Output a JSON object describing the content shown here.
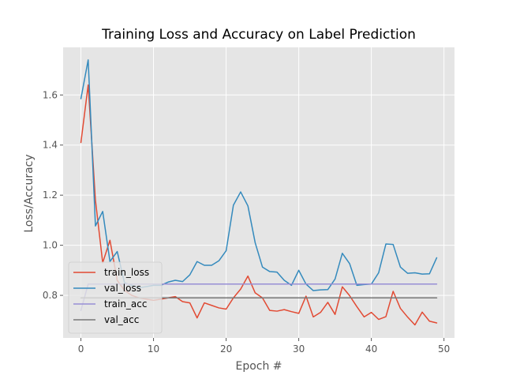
{
  "chart_data": {
    "type": "line",
    "title": "Training Loss and Accuracy on Label Prediction",
    "xlabel": "Epoch #",
    "ylabel": "Loss/Accuracy",
    "xlim": [
      -2.45,
      51.45
    ],
    "ylim": [
      0.63,
      1.79
    ],
    "xticks": [
      0,
      10,
      20,
      30,
      40,
      50
    ],
    "yticks": [
      0.8,
      1.0,
      1.2,
      1.4,
      1.6
    ],
    "ytick_labels": [
      "0.8",
      "1.0",
      "1.2",
      "1.4",
      "1.6"
    ],
    "grid": true,
    "legend_position": "lower-left",
    "background": "#e5e5e5",
    "x": [
      0,
      1,
      2,
      3,
      4,
      5,
      6,
      7,
      8,
      9,
      10,
      11,
      12,
      13,
      14,
      15,
      16,
      17,
      18,
      19,
      20,
      21,
      22,
      23,
      24,
      25,
      26,
      27,
      28,
      29,
      30,
      31,
      32,
      33,
      34,
      35,
      36,
      37,
      38,
      39,
      40,
      41,
      42,
      43,
      44,
      45,
      46,
      47,
      48,
      49
    ],
    "series": [
      {
        "name": "train_loss",
        "color": "#e24a33",
        "values": [
          1.41,
          1.64,
          1.18,
          0.93,
          1.02,
          0.86,
          0.82,
          0.8,
          0.79,
          0.785,
          0.78,
          0.785,
          0.79,
          0.795,
          0.775,
          0.77,
          0.71,
          0.77,
          0.76,
          0.75,
          0.745,
          0.79,
          0.825,
          0.877,
          0.81,
          0.79,
          0.74,
          0.737,
          0.743,
          0.735,
          0.728,
          0.797,
          0.714,
          0.732,
          0.772,
          0.724,
          0.834,
          0.799,
          0.755,
          0.714,
          0.732,
          0.704,
          0.715,
          0.816,
          0.748,
          0.713,
          0.682,
          0.733,
          0.697,
          0.69
        ]
      },
      {
        "name": "val_loss",
        "color": "#348abd",
        "values": [
          1.585,
          1.74,
          1.077,
          1.135,
          0.935,
          0.975,
          0.85,
          0.84,
          0.83,
          0.835,
          0.84,
          0.84,
          0.853,
          0.86,
          0.855,
          0.882,
          0.935,
          0.92,
          0.92,
          0.938,
          0.978,
          1.16,
          1.213,
          1.157,
          1.01,
          0.913,
          0.895,
          0.893,
          0.86,
          0.84,
          0.9,
          0.845,
          0.819,
          0.822,
          0.823,
          0.865,
          0.968,
          0.927,
          0.84,
          0.843,
          0.845,
          0.89,
          1.005,
          1.003,
          0.913,
          0.888,
          0.89,
          0.885,
          0.886,
          0.95
        ]
      },
      {
        "name": "train_acc",
        "color": "#988ed5",
        "values": [
          0.74,
          0.845,
          0.845,
          0.845,
          0.845,
          0.845,
          0.845,
          0.845,
          0.845,
          0.845,
          0.845,
          0.845,
          0.845,
          0.845,
          0.845,
          0.845,
          0.845,
          0.845,
          0.845,
          0.845,
          0.845,
          0.845,
          0.845,
          0.845,
          0.845,
          0.845,
          0.845,
          0.845,
          0.845,
          0.845,
          0.845,
          0.845,
          0.845,
          0.845,
          0.845,
          0.845,
          0.845,
          0.845,
          0.845,
          0.845,
          0.845,
          0.845,
          0.845,
          0.845,
          0.845,
          0.845,
          0.845,
          0.845,
          0.845,
          0.845
        ]
      },
      {
        "name": "val_acc",
        "color": "#777777",
        "values": [
          0.79,
          0.79,
          0.79,
          0.79,
          0.79,
          0.79,
          0.79,
          0.79,
          0.79,
          0.79,
          0.79,
          0.79,
          0.79,
          0.79,
          0.79,
          0.79,
          0.79,
          0.79,
          0.79,
          0.79,
          0.79,
          0.79,
          0.79,
          0.79,
          0.79,
          0.79,
          0.79,
          0.79,
          0.79,
          0.79,
          0.79,
          0.79,
          0.79,
          0.79,
          0.79,
          0.79,
          0.79,
          0.79,
          0.79,
          0.79,
          0.79,
          0.79,
          0.79,
          0.79,
          0.79,
          0.79,
          0.79,
          0.79,
          0.79,
          0.79
        ]
      }
    ]
  }
}
